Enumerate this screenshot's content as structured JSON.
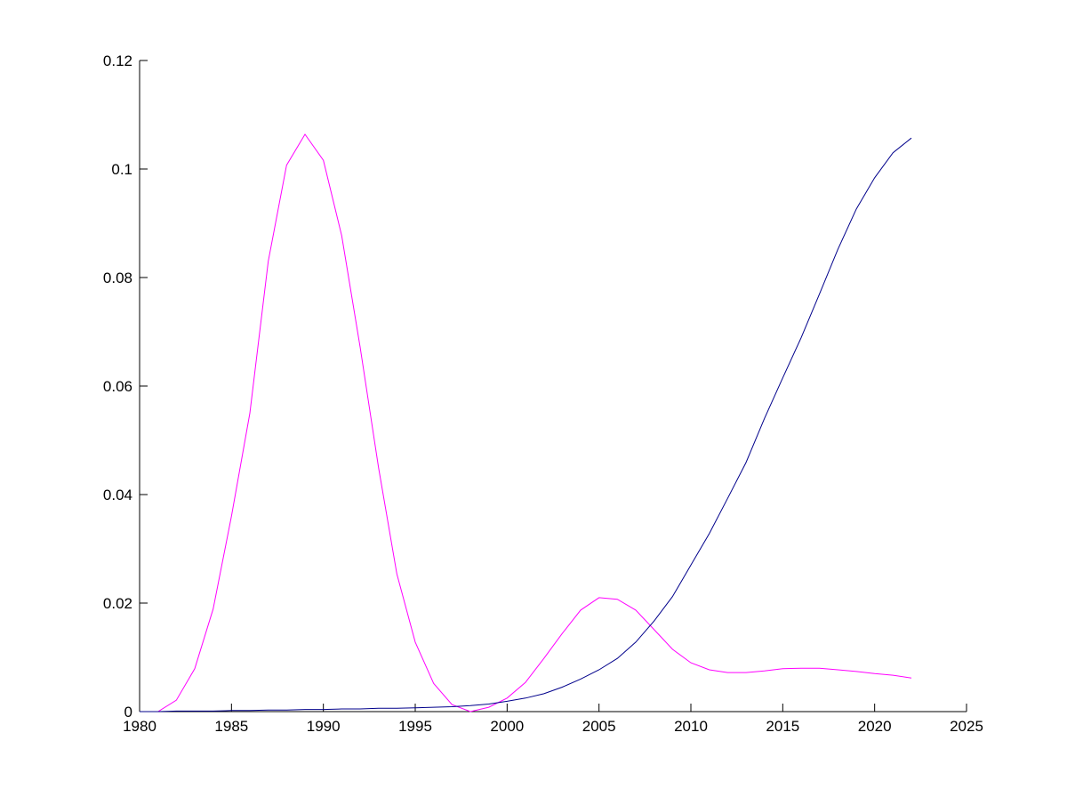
{
  "chart_data": {
    "type": "line",
    "title": "",
    "xlabel": "",
    "ylabel": "",
    "xlim": [
      1980,
      2025
    ],
    "ylim": [
      0,
      0.12
    ],
    "grid": false,
    "xticks": [
      "1980",
      "1985",
      "1990",
      "1995",
      "2000",
      "2005",
      "2010",
      "2015",
      "2020",
      "2025"
    ],
    "yticks": [
      "0",
      "0.02",
      "0.04",
      "0.06",
      "0.08",
      "0.1",
      "0.12"
    ],
    "x": [
      1980,
      1981,
      1982,
      1983,
      1984,
      1985,
      1986,
      1987,
      1988,
      1989,
      1990,
      1991,
      1992,
      1993,
      1994,
      1995,
      1996,
      1997,
      1998,
      1999,
      2000,
      2001,
      2002,
      2003,
      2004,
      2005,
      2006,
      2007,
      2008,
      2009,
      2010,
      2011,
      2012,
      2013,
      2014,
      2015,
      2016,
      2017,
      2018,
      2019,
      2020,
      2021,
      2022
    ],
    "series": [
      {
        "color": "#ff00ff",
        "values": [
          0,
          0,
          0.0021,
          0.0079,
          0.0189,
          0.036,
          0.055,
          0.083,
          0.1007,
          0.1064,
          0.1016,
          0.0877,
          0.0672,
          0.045,
          0.0254,
          0.0128,
          0.0052,
          0.0013,
          0,
          0.0008,
          0.0025,
          0.0054,
          0.0098,
          0.0144,
          0.0187,
          0.021,
          0.0207,
          0.0187,
          0.0151,
          0.0115,
          0.009,
          0.0077,
          0.0072,
          0.0072,
          0.0075,
          0.0079,
          0.008,
          0.008,
          0.0077,
          0.0074,
          0.007,
          0.0067,
          0.0062
        ]
      },
      {
        "color": "#00008b",
        "values": [
          0,
          0,
          0.0001,
          0.0001,
          0.0001,
          0.0002,
          0.0002,
          0.0003,
          0.0003,
          0.0004,
          0.0004,
          0.0005,
          0.0005,
          0.0006,
          0.0006,
          0.0007,
          0.0008,
          0.0009,
          0.0011,
          0.0014,
          0.0019,
          0.0025,
          0.0033,
          0.0045,
          0.006,
          0.0077,
          0.0098,
          0.0128,
          0.0167,
          0.0212,
          0.027,
          0.0328,
          0.0393,
          0.0459,
          0.054,
          0.0615,
          0.0689,
          0.077,
          0.0852,
          0.0926,
          0.0984,
          0.103,
          0.1057
        ]
      }
    ]
  }
}
